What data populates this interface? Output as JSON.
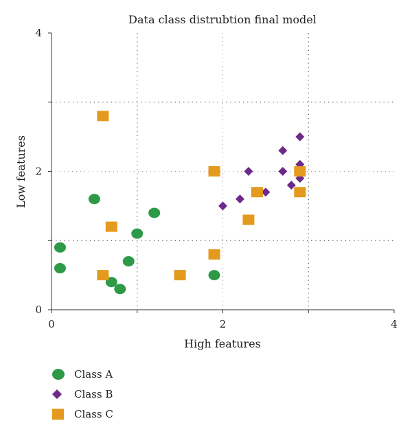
{
  "chart_data": {
    "type": "scatter",
    "title": "Data class distrubtion final model",
    "xlabel": "High features",
    "ylabel": "Low features",
    "xlim": [
      0,
      4
    ],
    "ylim": [
      0,
      4
    ],
    "x_ticks": [
      "0",
      "2",
      "4"
    ],
    "y_ticks": [
      "0",
      "2",
      "4"
    ],
    "grid": "dotted, major at 1 and 3, minor at 2",
    "legend_position": "bottom-left, below chart",
    "series": [
      {
        "name": "Class A",
        "marker": "circle",
        "color": "#2e9a48",
        "points": [
          [
            0.1,
            0.9
          ],
          [
            0.1,
            0.6
          ],
          [
            0.5,
            1.6
          ],
          [
            0.7,
            0.4
          ],
          [
            0.8,
            0.3
          ],
          [
            0.9,
            0.7
          ],
          [
            1.0,
            1.1
          ],
          [
            1.2,
            1.4
          ],
          [
            1.9,
            0.5
          ]
        ]
      },
      {
        "name": "Class B",
        "marker": "diamond",
        "color": "#6c2a8a",
        "points": [
          [
            2.0,
            1.5
          ],
          [
            2.2,
            1.6
          ],
          [
            2.3,
            2.0
          ],
          [
            2.5,
            1.7
          ],
          [
            2.7,
            2.3
          ],
          [
            2.7,
            2.0
          ],
          [
            2.8,
            1.8
          ],
          [
            2.9,
            1.9
          ],
          [
            2.9,
            2.1
          ],
          [
            2.9,
            2.5
          ]
        ]
      },
      {
        "name": "Class C",
        "marker": "square",
        "color": "#e49a1e",
        "points": [
          [
            0.6,
            2.8
          ],
          [
            0.7,
            1.2
          ],
          [
            0.6,
            0.5
          ],
          [
            1.5,
            0.5
          ],
          [
            1.9,
            2.0
          ],
          [
            1.9,
            0.8
          ],
          [
            2.3,
            1.3
          ],
          [
            2.4,
            1.7
          ],
          [
            2.9,
            2.0
          ],
          [
            2.9,
            1.7
          ]
        ]
      }
    ]
  }
}
